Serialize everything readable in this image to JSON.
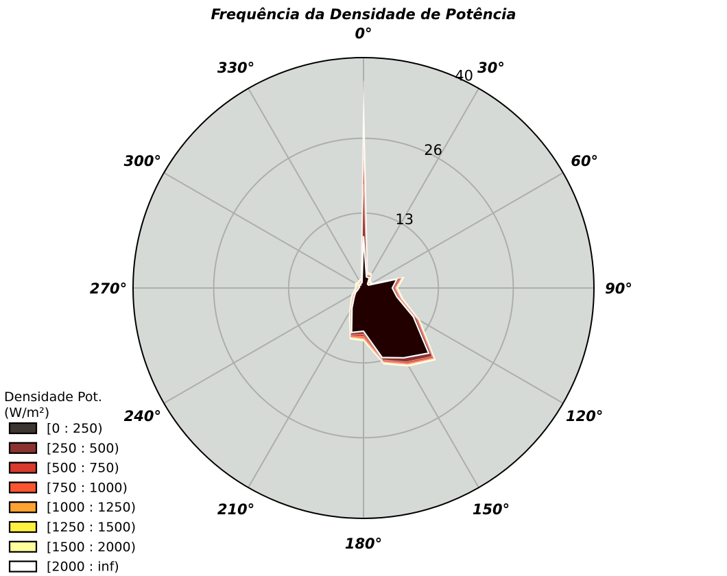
{
  "chart_data": {
    "type": "radar",
    "title": "Frequência da Densidade de Potência",
    "direction_labels": [
      "0°",
      "30°",
      "60°",
      "90°",
      "120°",
      "150°",
      "180°",
      "210°",
      "240°",
      "270°",
      "300°",
      "330°"
    ],
    "ring_labels": [
      "13",
      "26",
      "40"
    ],
    "radial_range": [
      0,
      40
    ],
    "sectors_deg": [
      0,
      15,
      30,
      45,
      60,
      75,
      90,
      105,
      120,
      135,
      150,
      165,
      180,
      195,
      210,
      225,
      240,
      255,
      270,
      285,
      300,
      315,
      330,
      345
    ],
    "legend_title": "Densidade Pot.\n(W/m²)",
    "legend_position": "bottom-left",
    "series": [
      {
        "name": "[0 : 250)",
        "color": "#3d3530",
        "values": [
          9.0,
          2.0,
          2.0,
          1.0,
          1.0,
          6.0,
          5.0,
          6.0,
          10.0,
          16.0,
          14.0,
          12.5,
          7.5,
          8.0,
          4.0,
          2.3,
          1.6,
          1.0,
          0.8,
          0.7,
          1.0,
          0.7,
          0.9,
          1.0
        ]
      },
      {
        "name": "[250 : 500)",
        "color": "#8b3330",
        "values": [
          18.0,
          2.2,
          2.2,
          1.1,
          1.1,
          6.4,
          5.3,
          6.3,
          10.5,
          16.8,
          14.8,
          12.9,
          8.0,
          8.4,
          4.3,
          2.5,
          1.8,
          1.1,
          0.9,
          0.8,
          1.1,
          0.8,
          1.0,
          1.1
        ]
      },
      {
        "name": "[500 : 750)",
        "color": "#d83a2d",
        "values": [
          23.0,
          2.3,
          2.4,
          1.2,
          1.2,
          6.7,
          5.5,
          6.5,
          10.8,
          17.1,
          15.1,
          13.1,
          8.4,
          8.6,
          4.5,
          2.7,
          1.9,
          1.2,
          1.0,
          0.9,
          1.2,
          0.9,
          1.1,
          1.2
        ]
      },
      {
        "name": "[750 : 1000)",
        "color": "#fb5530",
        "values": [
          25.0,
          2.4,
          2.5,
          1.3,
          1.3,
          6.9,
          5.6,
          6.7,
          11.0,
          17.3,
          15.3,
          13.3,
          8.7,
          8.8,
          4.6,
          2.8,
          2.0,
          1.3,
          1.1,
          1.0,
          1.3,
          1.0,
          1.2,
          1.3
        ]
      },
      {
        "name": "[1000 : 1250)",
        "color": "#fea330",
        "values": [
          26.5,
          2.5,
          2.6,
          1.4,
          1.4,
          7.0,
          5.7,
          6.8,
          11.1,
          17.4,
          15.4,
          13.4,
          8.9,
          8.9,
          4.7,
          2.9,
          2.1,
          1.4,
          1.2,
          1.1,
          1.4,
          1.1,
          1.3,
          1.4
        ]
      },
      {
        "name": "[1250 : 1500)",
        "color": "#fef040",
        "values": [
          27.5,
          2.6,
          2.7,
          1.5,
          1.5,
          7.1,
          5.8,
          6.9,
          11.2,
          17.5,
          15.5,
          13.5,
          9.0,
          9.0,
          4.8,
          3.0,
          2.2,
          1.5,
          1.3,
          1.2,
          1.5,
          1.2,
          1.4,
          1.5
        ]
      },
      {
        "name": "[1500 : 2000)",
        "color": "#ffff9e",
        "values": [
          29.0,
          2.7,
          2.8,
          1.6,
          1.6,
          7.2,
          5.9,
          7.0,
          11.3,
          17.6,
          15.6,
          13.6,
          9.1,
          9.1,
          4.9,
          3.1,
          2.3,
          1.6,
          1.4,
          1.3,
          1.6,
          1.3,
          1.5,
          1.6
        ]
      },
      {
        "name": "[2000 : inf)",
        "color": "#ffffff",
        "values": [
          36.0,
          2.8,
          2.9,
          1.7,
          1.7,
          7.3,
          6.0,
          7.1,
          11.4,
          17.7,
          15.7,
          13.7,
          9.2,
          9.2,
          5.0,
          3.2,
          2.4,
          1.7,
          1.5,
          1.4,
          1.7,
          1.4,
          1.6,
          1.7
        ]
      }
    ]
  },
  "colors": {
    "background": "#d6dad6",
    "grid": "#adadad",
    "base_fill": "#220000",
    "outline": "#000000"
  }
}
